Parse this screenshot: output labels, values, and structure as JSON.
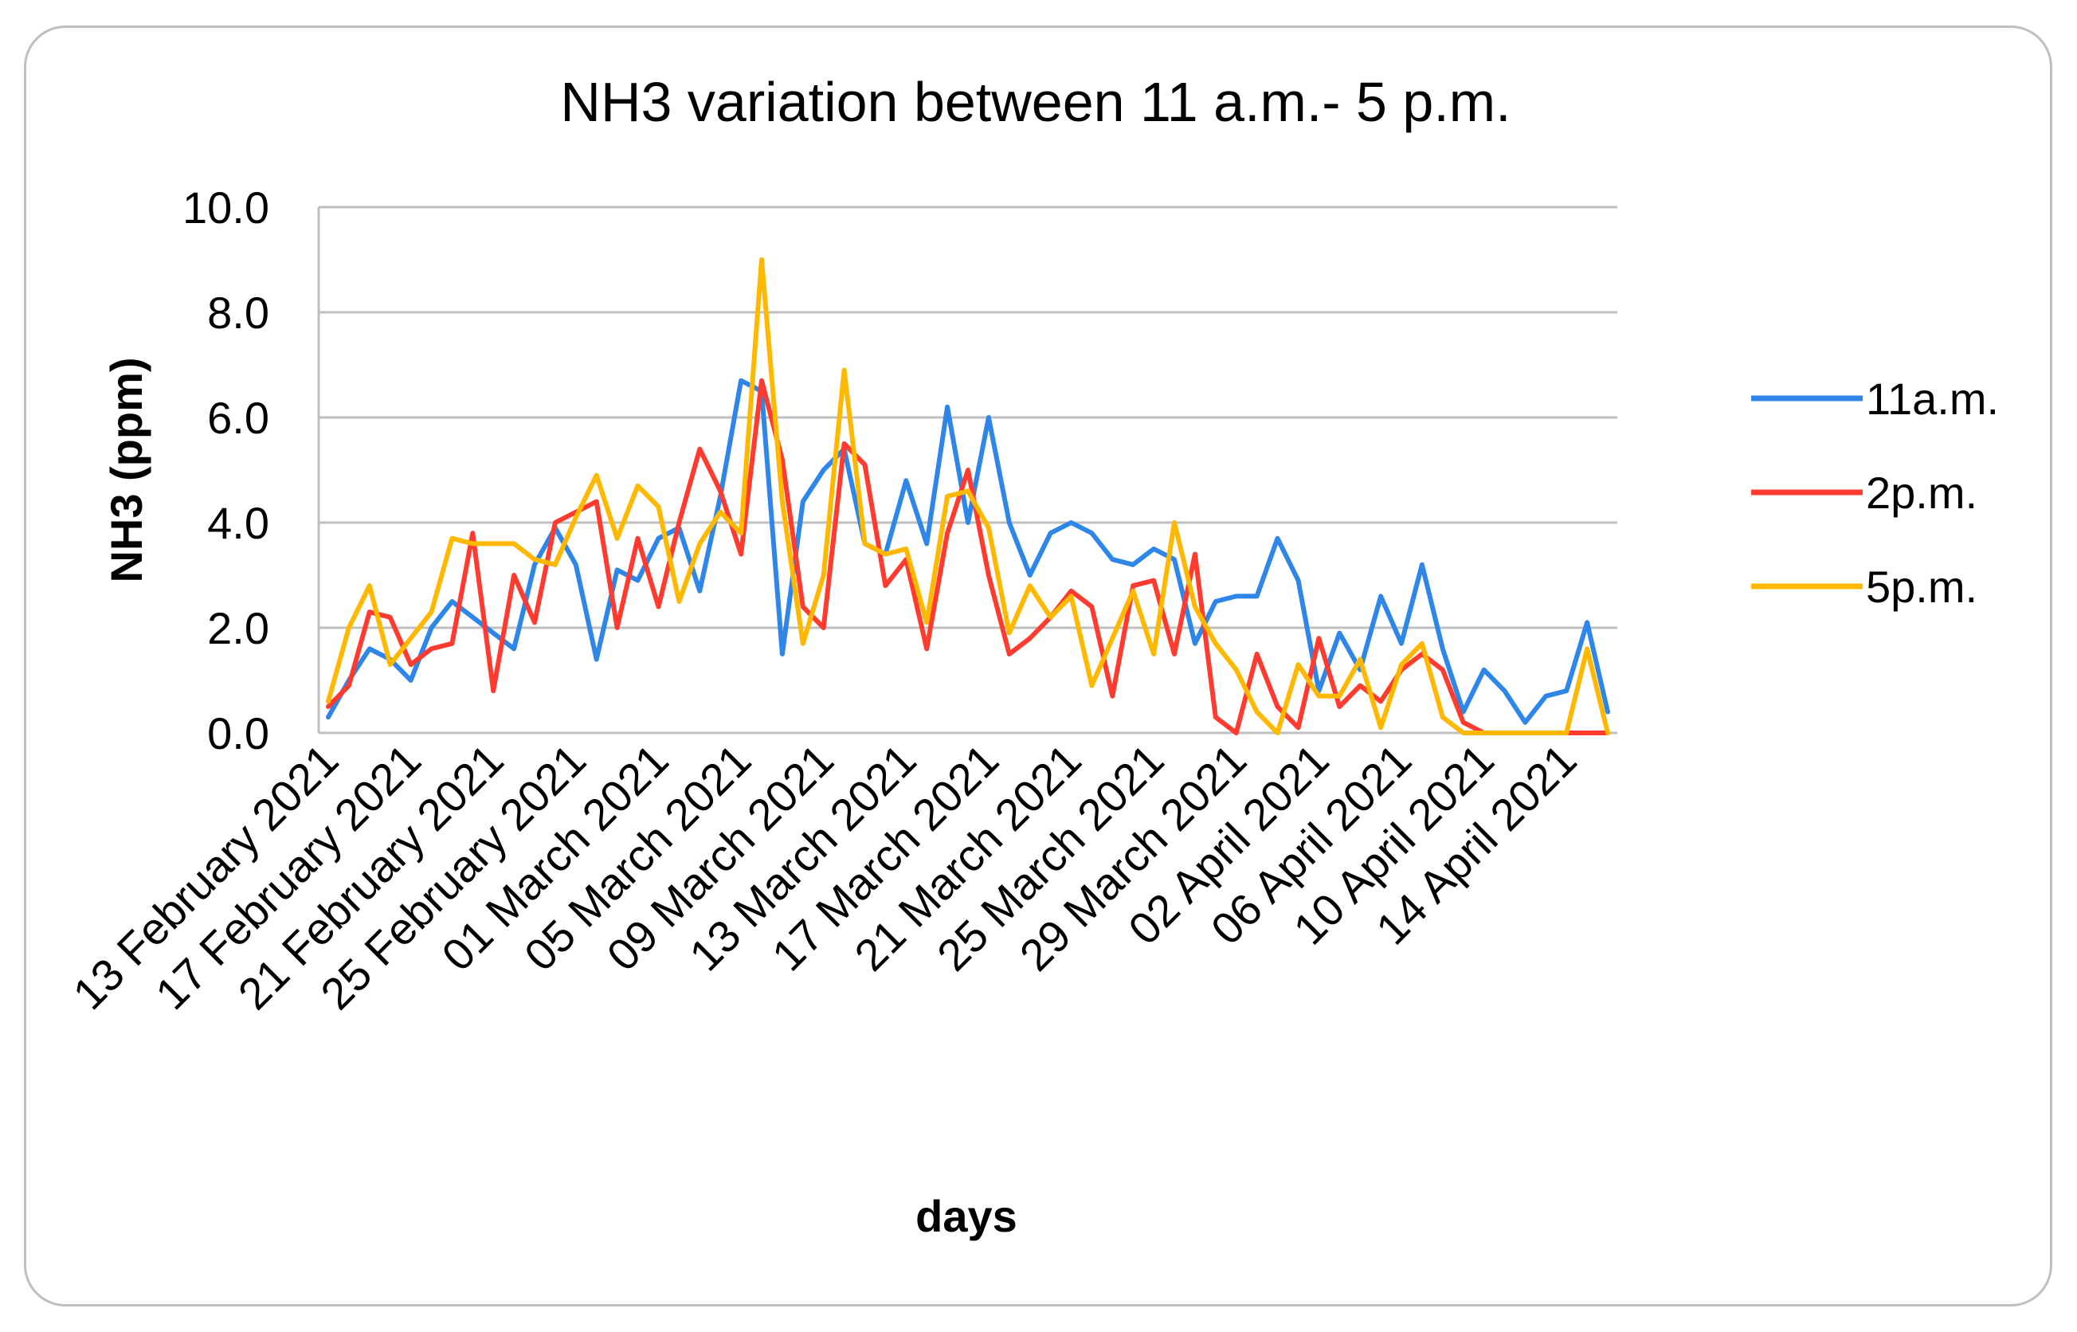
{
  "chart_data": {
    "type": "line",
    "title": "NH3 variation between 11 a.m.- 5 p.m.",
    "xlabel": "days",
    "ylabel": "NH3 (ppm)",
    "ylim": [
      0,
      10
    ],
    "yticks": [
      "0.0",
      "2.0",
      "4.0",
      "6.0",
      "8.0",
      "10.0"
    ],
    "x_tick_labels": [
      "13 February 2021",
      "17 February 2021",
      "21 February 2021",
      "25 February 2021",
      "01 March 2021",
      "05 March 2021",
      "09 March 2021",
      "13 March 2021",
      "17 March 2021",
      "21 March 2021",
      "25 March 2021",
      "29 March 2021",
      "02 April 2021",
      "06 April 2021",
      "10 April 2021",
      "14 April 2021"
    ],
    "x_tick_every": 4,
    "grid": true,
    "legend_position": "right",
    "series": [
      {
        "name": "11a.m.",
        "color": "#2E86E8",
        "values": [
          0.3,
          1.0,
          1.6,
          1.4,
          1.0,
          2.0,
          2.5,
          2.2,
          1.9,
          1.6,
          3.2,
          3.9,
          3.2,
          1.4,
          3.1,
          2.9,
          3.7,
          3.9,
          2.7,
          4.5,
          6.7,
          6.5,
          1.5,
          4.4,
          5.0,
          5.4,
          3.6,
          3.4,
          4.8,
          3.6,
          6.2,
          4.0,
          6.0,
          4.0,
          3.0,
          3.8,
          4.0,
          3.8,
          3.3,
          3.2,
          3.5,
          3.3,
          1.7,
          2.5,
          2.6,
          2.6,
          3.7,
          2.9,
          0.8,
          1.9,
          1.2,
          2.6,
          1.7,
          3.2,
          1.6,
          0.4,
          1.2,
          0.8,
          0.2,
          0.7,
          0.8,
          2.1,
          0.4
        ]
      },
      {
        "name": "2p.m.",
        "color": "#FF3B30",
        "values": [
          0.5,
          0.9,
          2.3,
          2.2,
          1.3,
          1.6,
          1.7,
          3.8,
          0.8,
          3.0,
          2.1,
          4.0,
          4.2,
          4.4,
          2.0,
          3.7,
          2.4,
          4.0,
          5.4,
          4.6,
          3.4,
          6.7,
          5.2,
          2.4,
          2.0,
          5.5,
          5.1,
          2.8,
          3.3,
          1.6,
          3.8,
          5.0,
          3.0,
          1.5,
          1.8,
          2.2,
          2.7,
          2.4,
          0.7,
          2.8,
          2.9,
          1.5,
          3.4,
          0.3,
          0.0,
          1.5,
          0.5,
          0.1,
          1.8,
          0.5,
          0.9,
          0.6,
          1.2,
          1.5,
          1.2,
          0.2,
          0.0,
          0.0,
          0.0,
          0.0,
          0.0,
          0.0,
          0.0
        ]
      },
      {
        "name": "5p.m.",
        "color": "#FFB800",
        "values": [
          0.6,
          2.0,
          2.8,
          1.3,
          1.8,
          2.3,
          3.7,
          3.6,
          3.6,
          3.6,
          3.3,
          3.2,
          4.1,
          4.9,
          3.7,
          4.7,
          4.3,
          2.5,
          3.6,
          4.2,
          3.8,
          9.0,
          4.4,
          1.7,
          3.0,
          6.9,
          3.6,
          3.4,
          3.5,
          2.1,
          4.5,
          4.6,
          3.9,
          1.9,
          2.8,
          2.2,
          2.6,
          0.9,
          1.8,
          2.7,
          1.5,
          4.0,
          2.4,
          1.7,
          1.2,
          0.4,
          0.0,
          1.3,
          0.7,
          0.7,
          1.4,
          0.1,
          1.3,
          1.7,
          0.3,
          0.0,
          0.0,
          0.0,
          0.0,
          0.0,
          0.0,
          1.6,
          0.0
        ]
      }
    ]
  }
}
